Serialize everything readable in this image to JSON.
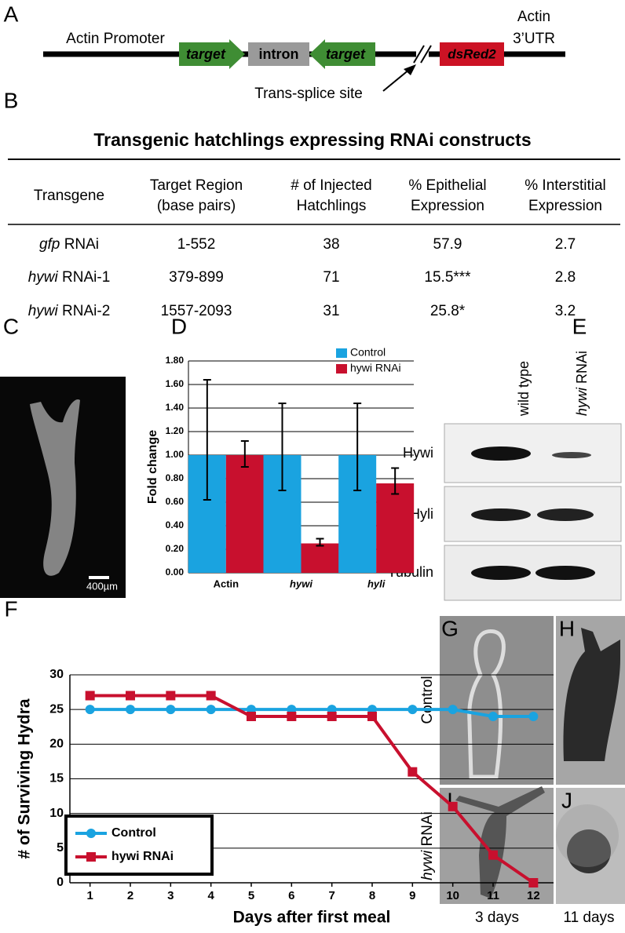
{
  "panel_labels": [
    "A",
    "B",
    "C",
    "D",
    "E",
    "F",
    "G",
    "H",
    "I",
    "J"
  ],
  "construct": {
    "promoter": "Actin Promoter",
    "target_1": "target",
    "intron": "intron",
    "target_2": "target",
    "reporter": "dsRed2",
    "utr": [
      "Actin",
      "3’UTR"
    ],
    "splice_site": "Trans-splice site"
  },
  "table": {
    "title": "Transgenic hatchlings expressing RNAi constructs",
    "headers": [
      [
        "Transgene"
      ],
      [
        "Target Region",
        "(base pairs)"
      ],
      [
        "# of Injected",
        "Hatchlings"
      ],
      [
        "% Epithelial",
        "Expression"
      ],
      [
        "% Interstitial",
        "Expression"
      ]
    ],
    "rows": [
      [
        {
          "gene": "gfp",
          "suffix": "RNAi"
        },
        "1-552",
        "38",
        "57.9",
        "2.7"
      ],
      [
        {
          "gene": "hywi",
          "suffix": "RNAi-1"
        },
        "379-899",
        "71",
        "15.5***",
        "2.8"
      ],
      [
        {
          "gene": "hywi",
          "suffix": "RNAi-2"
        },
        "1557-2093",
        "31",
        "25.8*",
        "3.2"
      ]
    ]
  },
  "image_c": {
    "scale_bar": "400µm"
  },
  "blot": {
    "lanes": [
      "wild type",
      {
        "gene": "hywi",
        "suffix": "RNAi"
      }
    ],
    "proteins": [
      "Hywi",
      "Hyli",
      "Tubulin"
    ]
  },
  "image_grid": {
    "rows": [
      "Control",
      {
        "gene": "hywi",
        "suffix": "RNAi"
      }
    ],
    "columns": [
      "3 days",
      "11 days"
    ]
  },
  "chart_data": [
    {
      "type": "bar",
      "ylabel": "Fold change",
      "categories": [
        "Actin",
        "hywi",
        "hyli"
      ],
      "series": [
        {
          "name": "Control",
          "color": "#1aa3e0",
          "values": [
            1.0,
            1.0,
            1.0
          ],
          "error_low": [
            0.38,
            0.3,
            0.3
          ],
          "error_high": [
            0.64,
            0.44,
            0.44
          ]
        },
        {
          "name": "hywi RNAi",
          "color": "#c8102e",
          "values": [
            1.0,
            0.25,
            0.76
          ],
          "error_low": [
            0.1,
            0.02,
            0.09
          ],
          "error_high": [
            0.12,
            0.04,
            0.13
          ]
        }
      ],
      "ylim": [
        0,
        1.8
      ],
      "yticks": [
        {
          "value": 0,
          "label": "0.00"
        },
        {
          "value": 0.2,
          "label": "0.20"
        },
        {
          "value": 0.4,
          "label": "0.40"
        },
        {
          "value": 0.6,
          "label": "0.60"
        },
        {
          "value": 0.8,
          "label": "0.80"
        },
        {
          "value": 1.0,
          "label": "1.00"
        },
        {
          "value": 1.2,
          "label": "1.20"
        },
        {
          "value": 1.4,
          "label": "1.40"
        },
        {
          "value": 1.6,
          "label": "1.60"
        },
        {
          "value": 1.8,
          "label": "1.80"
        }
      ],
      "grid": true,
      "legend": "top-right"
    },
    {
      "type": "line",
      "xlabel": "Days after first meal",
      "ylabel": "# of Surviving Hydra",
      "x": [
        1,
        2,
        3,
        4,
        5,
        6,
        7,
        8,
        9,
        10,
        11,
        12
      ],
      "series": [
        {
          "name": "Control",
          "color": "#1aa3e0",
          "marker": "circle",
          "values": [
            25,
            25,
            25,
            25,
            25,
            25,
            25,
            25,
            25,
            25,
            24,
            24
          ]
        },
        {
          "name": "hywi RNAi",
          "color": "#c8102e",
          "marker": "square",
          "values": [
            27,
            27,
            27,
            27,
            24,
            24,
            24,
            24,
            16,
            11,
            4,
            0
          ]
        }
      ],
      "xlim": [
        0.5,
        12.5
      ],
      "xticks": [
        1,
        2,
        3,
        4,
        5,
        6,
        7,
        8,
        9,
        10,
        11,
        12
      ],
      "ylim": [
        0,
        30
      ],
      "yticks": [
        0,
        5,
        10,
        15,
        20,
        25,
        30
      ],
      "grid": true,
      "legend": "bottom-left"
    }
  ]
}
